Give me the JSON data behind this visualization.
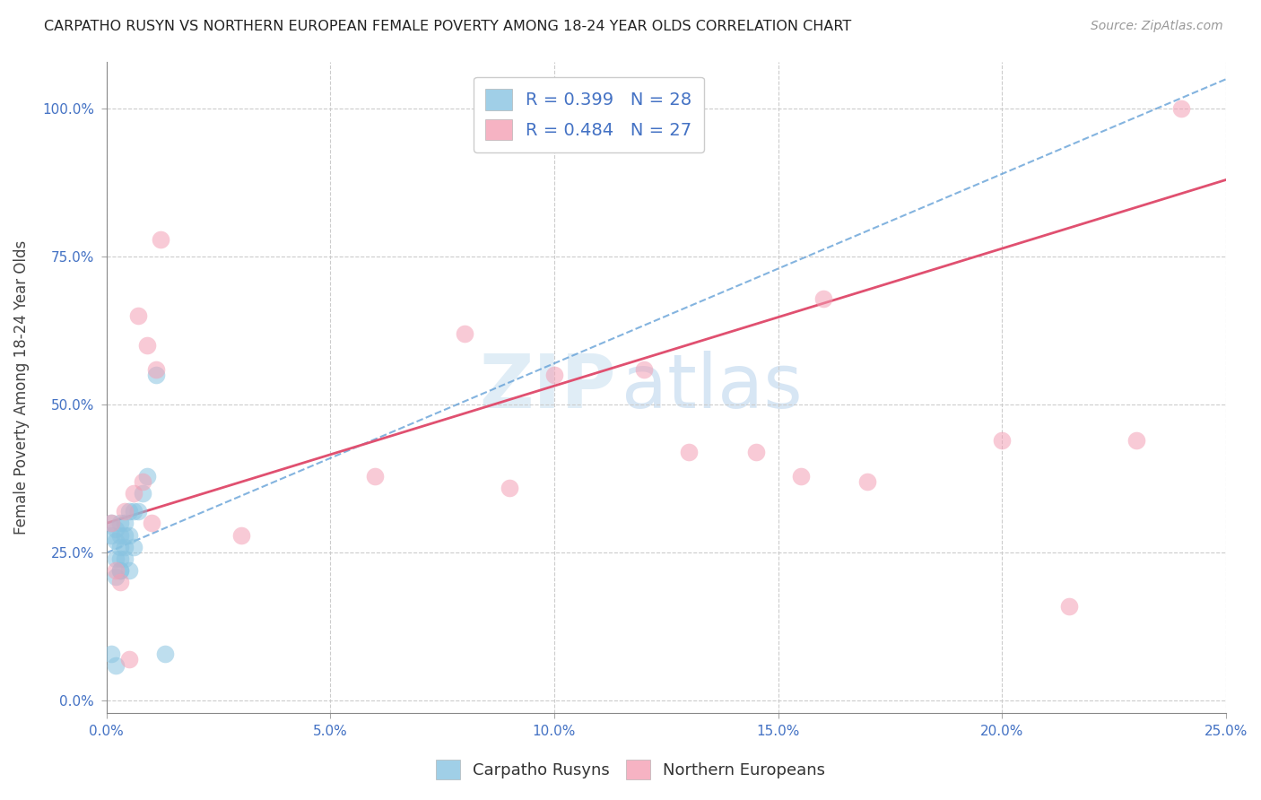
{
  "title": "CARPATHO RUSYN VS NORTHERN EUROPEAN FEMALE POVERTY AMONG 18-24 YEAR OLDS CORRELATION CHART",
  "source": "Source: ZipAtlas.com",
  "ylabel": "Female Poverty Among 18-24 Year Olds",
  "legend_label1": "Carpatho Rusyns",
  "legend_label2": "Northern Europeans",
  "R1": 0.399,
  "N1": 28,
  "R2": 0.484,
  "N2": 27,
  "color_blue": "#89c4e1",
  "color_pink": "#f4a0b5",
  "color_blue_line": "#5b9bd5",
  "color_pink_line": "#e05070",
  "watermark_zip": "ZIP",
  "watermark_atlas": "atlas",
  "xlim": [
    0.0,
    0.25
  ],
  "ylim": [
    -0.02,
    1.08
  ],
  "xticks": [
    0.0,
    0.05,
    0.1,
    0.15,
    0.2,
    0.25
  ],
  "yticks": [
    0.0,
    0.25,
    0.5,
    0.75,
    1.0
  ],
  "blue_x": [
    0.001,
    0.001,
    0.001,
    0.002,
    0.002,
    0.002,
    0.002,
    0.002,
    0.003,
    0.003,
    0.003,
    0.003,
    0.003,
    0.003,
    0.004,
    0.004,
    0.004,
    0.004,
    0.005,
    0.005,
    0.005,
    0.006,
    0.006,
    0.007,
    0.008,
    0.009,
    0.011,
    0.013
  ],
  "blue_y": [
    0.28,
    0.3,
    0.08,
    0.21,
    0.24,
    0.27,
    0.29,
    0.06,
    0.22,
    0.24,
    0.26,
    0.28,
    0.3,
    0.22,
    0.24,
    0.26,
    0.28,
    0.3,
    0.22,
    0.28,
    0.32,
    0.26,
    0.32,
    0.32,
    0.35,
    0.38,
    0.55,
    0.08
  ],
  "pink_x": [
    0.001,
    0.002,
    0.003,
    0.004,
    0.005,
    0.006,
    0.007,
    0.008,
    0.009,
    0.01,
    0.011,
    0.012,
    0.03,
    0.06,
    0.08,
    0.09,
    0.1,
    0.12,
    0.13,
    0.145,
    0.155,
    0.16,
    0.17,
    0.2,
    0.215,
    0.23,
    0.24
  ],
  "pink_y": [
    0.3,
    0.22,
    0.2,
    0.32,
    0.07,
    0.35,
    0.65,
    0.37,
    0.6,
    0.3,
    0.56,
    0.78,
    0.28,
    0.38,
    0.62,
    0.36,
    0.55,
    0.56,
    0.42,
    0.42,
    0.38,
    0.68,
    0.37,
    0.44,
    0.16,
    0.44,
    1.0
  ],
  "blue_line_x": [
    0.0,
    0.25
  ],
  "blue_line_y": [
    0.25,
    1.05
  ],
  "pink_line_x": [
    0.0,
    0.25
  ],
  "pink_line_y": [
    0.3,
    0.88
  ]
}
